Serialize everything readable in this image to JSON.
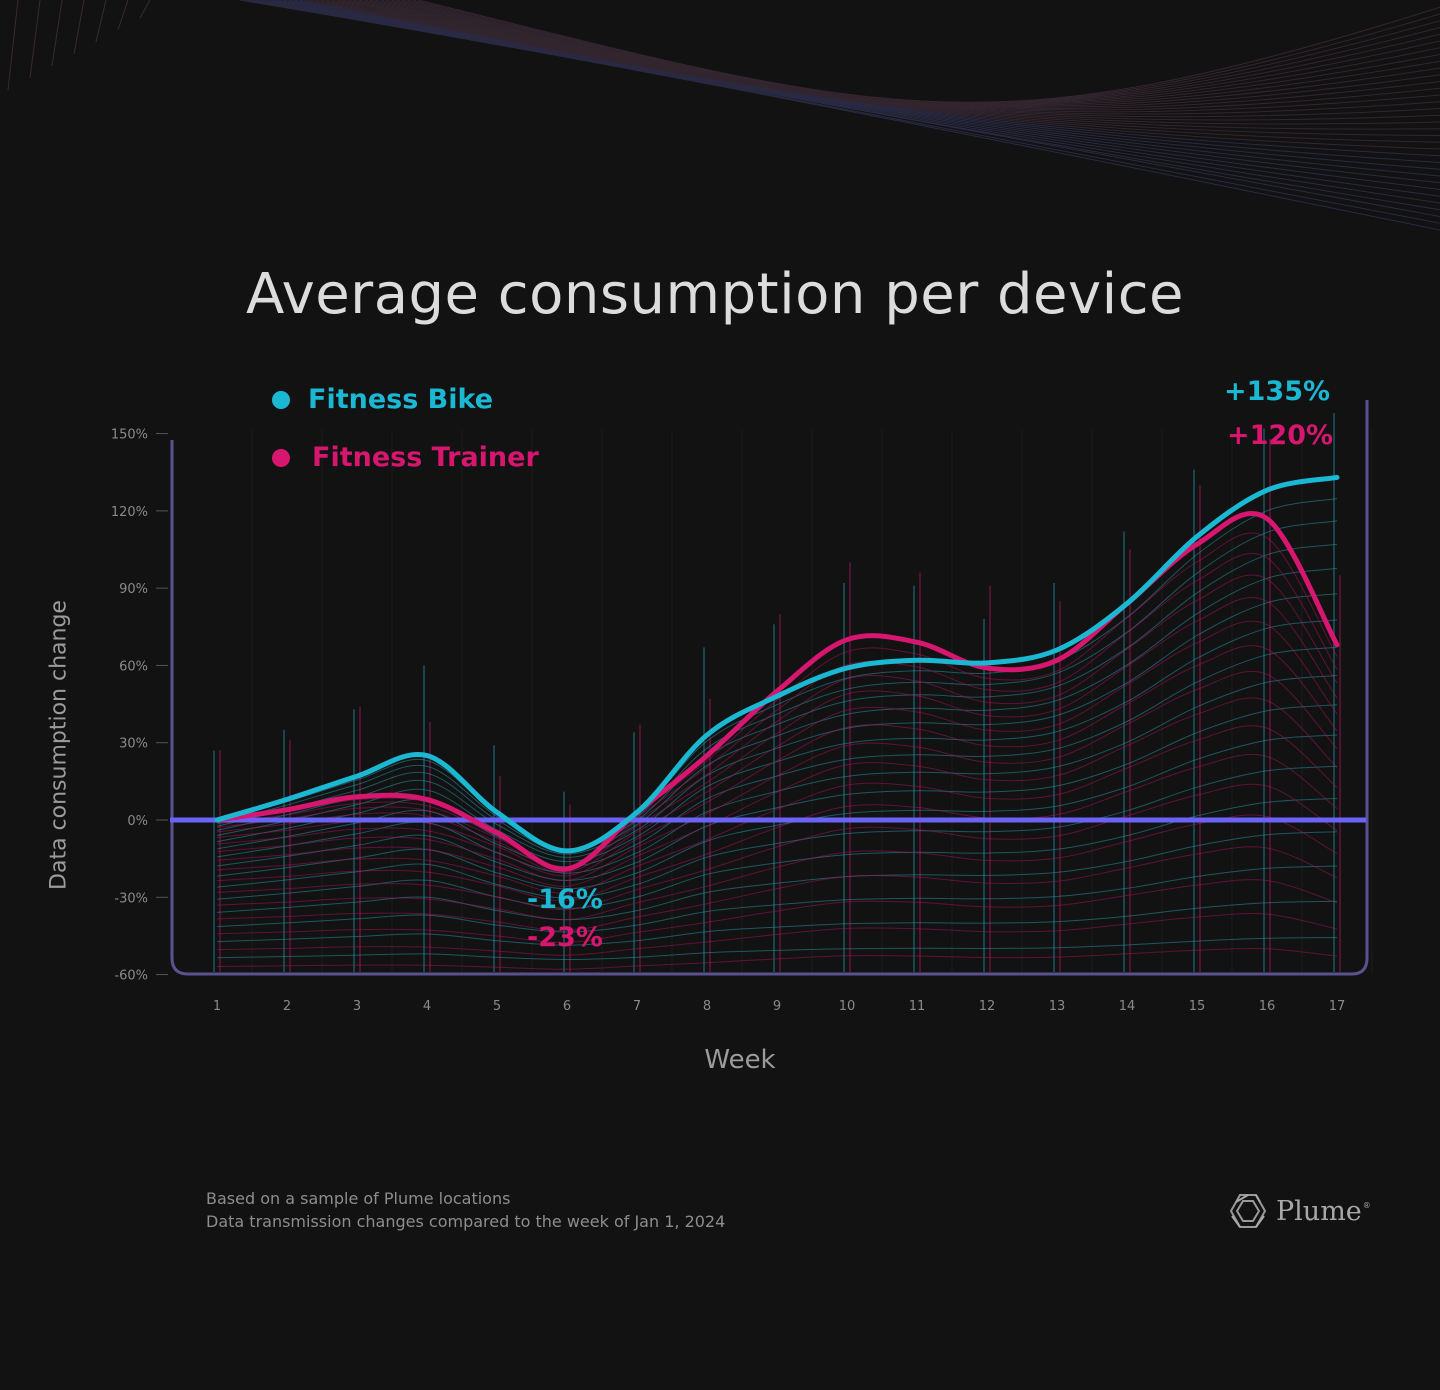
{
  "chart_data": {
    "type": "line",
    "title": "Average consumption per device",
    "xlabel": "Week",
    "ylabel": "Data consumption change",
    "x": [
      1,
      2,
      3,
      4,
      5,
      6,
      7,
      8,
      9,
      10,
      11,
      12,
      13,
      14,
      15,
      16,
      17
    ],
    "x_tick_labels": [
      "1",
      "2",
      "3",
      "4",
      "5",
      "6",
      "7",
      "8",
      "9",
      "10",
      "11",
      "12",
      "13",
      "14",
      "15",
      "16",
      "17"
    ],
    "y_ticks": [
      150,
      120,
      90,
      60,
      30,
      0,
      -30,
      -60
    ],
    "y_tick_labels": [
      "150%",
      "120%",
      "90%",
      "60%",
      "30%",
      "0%",
      "-30%",
      "-60%"
    ],
    "ylim": [
      -60,
      150
    ],
    "baseline": 0,
    "legend_position": "top-left",
    "series": [
      {
        "name": "Fitness Bike",
        "color": "#1bb8d4",
        "values": [
          0,
          8,
          17,
          25,
          3,
          -12,
          3,
          33,
          48,
          59,
          62,
          61,
          66,
          84,
          110,
          128,
          133
        ]
      },
      {
        "name": "Fitness Trainer",
        "color": "#d6166f",
        "values": [
          0,
          4,
          9,
          8,
          -5,
          -19,
          3,
          25,
          50,
          70,
          69,
          59,
          62,
          84,
          107,
          117,
          68
        ]
      }
    ],
    "annotations": [
      {
        "text": "-16%",
        "series": "Fitness Bike",
        "color": "#1bb8d4"
      },
      {
        "text": "-23%",
        "series": "Fitness Trainer",
        "color": "#d6166f"
      },
      {
        "text": "+135%",
        "series": "Fitness Bike",
        "color": "#1bb8d4"
      },
      {
        "text": "+120%",
        "series": "Fitness Trainer",
        "color": "#d6166f"
      }
    ]
  },
  "footer": {
    "line1": "Based on a sample of Plume locations",
    "line2": "Data transmission changes compared to the week of Jan 1, 2024"
  },
  "brand": {
    "name": "Plume",
    "mark": "®"
  },
  "colors": {
    "background": "#121212",
    "baseline": "#6b63f5",
    "frame": "#5a5290"
  }
}
